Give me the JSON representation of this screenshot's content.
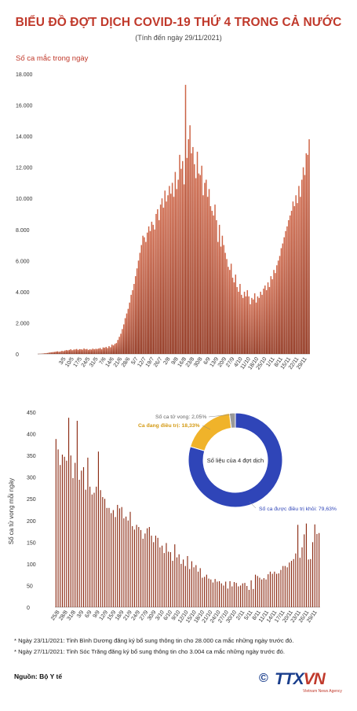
{
  "header": {
    "title": "BIỂU ĐỒ ĐỢT DỊCH COVID-19 THỨ 4 TRONG CẢ NƯỚC",
    "subtitle": "(Tính đến ngày 29/11/2021)"
  },
  "chart_data": [
    {
      "type": "bar",
      "ylabel": "Số ca mắc trong ngày",
      "ylim": [
        0,
        18000
      ],
      "yticks": [
        "0",
        "2.000",
        "4.000",
        "6.000",
        "8.000",
        "10.000",
        "12.000",
        "14.000",
        "16.000",
        "18.000"
      ],
      "tick_labels": [
        "3/5",
        "10/5",
        "17/5",
        "24/5",
        "31/5",
        "7/6",
        "14/6",
        "21/6",
        "28/6",
        "5/7",
        "12/7",
        "19/7",
        "26/7",
        "2/8",
        "9/8",
        "16/8",
        "23/8",
        "30/8",
        "6/9",
        "13/9",
        "20/9",
        "27/9",
        "4/10",
        "11/10",
        "18/10",
        "25/10",
        "1/11",
        "8/11",
        "15/11",
        "22/11",
        "29/11"
      ],
      "values": [
        6,
        12,
        18,
        25,
        40,
        45,
        60,
        80,
        100,
        110,
        120,
        130,
        150,
        170,
        140,
        160,
        200,
        180,
        220,
        250,
        230,
        260,
        300,
        240,
        280,
        290,
        320,
        260,
        310,
        300,
        280,
        350,
        300,
        320,
        260,
        300,
        280,
        340,
        300,
        330,
        320,
        350,
        380,
        300,
        420,
        400,
        450,
        380,
        500,
        430,
        600,
        550,
        650,
        700,
        900,
        1100,
        1300,
        1600,
        1900,
        2300,
        2600,
        2900,
        3300,
        3800,
        4100,
        4500,
        5000,
        5500,
        6000,
        6500,
        7000,
        7600,
        7500,
        7200,
        7800,
        8200,
        7900,
        8500,
        8300,
        8000,
        9000,
        9300,
        8600,
        9600,
        10000,
        9400,
        10500,
        9800,
        10200,
        10800,
        10300,
        11000,
        10100,
        11700,
        10600,
        11200,
        12800,
        11900,
        12400,
        10900,
        17300,
        12600,
        13800,
        14700,
        12900,
        13300,
        12200,
        11300,
        13000,
        11600,
        11500,
        12100,
        10200,
        11000,
        11200,
        10100,
        10600,
        9500,
        9200,
        8900,
        9600,
        8600,
        7200,
        8300,
        6900,
        7600,
        7000,
        6500,
        6100,
        5600,
        5400,
        5800,
        4900,
        4600,
        5100,
        4300,
        4000,
        4500,
        3800,
        3600,
        4000,
        3700,
        4100,
        3700,
        3200,
        3600,
        3500,
        3900,
        3300,
        3700,
        3600,
        4000,
        3800,
        4200,
        4400,
        4100,
        4600,
        4300,
        5000,
        4800,
        5400,
        5200,
        5700,
        6000,
        6300,
        6800,
        7100,
        7500,
        7900,
        8200,
        8600,
        8900,
        9200,
        9800,
        9500,
        10200,
        9700,
        10800,
        10100,
        11200,
        12000,
        11500,
        12900,
        12800,
        13800
      ]
    },
    {
      "type": "bar",
      "ylabel": "Số ca tử vong mỗi ngày",
      "ylim": [
        0,
        450
      ],
      "yticks": [
        "0",
        "50",
        "100",
        "150",
        "200",
        "250",
        "300",
        "350",
        "400",
        "450"
      ],
      "tick_labels": [
        "25/8",
        "28/8",
        "31/8",
        "3/9",
        "6/9",
        "9/9",
        "12/9",
        "15/9",
        "18/9",
        "21/9",
        "24/9",
        "27/9",
        "30/9",
        "3/10",
        "6/10",
        "9/10",
        "12/10",
        "15/10",
        "18/10",
        "21/10",
        "24/10",
        "27/10",
        "30/10",
        "2/11",
        "5/11",
        "8/11",
        "11/11",
        "14/11",
        "17/11",
        "20/11",
        "23/11",
        "26/11",
        "29/11"
      ],
      "values": [
        388,
        364,
        328,
        352,
        347,
        338,
        437,
        350,
        298,
        333,
        430,
        294,
        315,
        323,
        271,
        345,
        278,
        260,
        264,
        278,
        359,
        270,
        254,
        250,
        229,
        229,
        217,
        224,
        208,
        236,
        228,
        231,
        205,
        209,
        200,
        220,
        187,
        179,
        190,
        185,
        178,
        158,
        170,
        182,
        185,
        165,
        150,
        165,
        160,
        138,
        142,
        125,
        148,
        128,
        127,
        107,
        145,
        115,
        122,
        100,
        110,
        95,
        118,
        88,
        106,
        92,
        97,
        82,
        90,
        68,
        70,
        75,
        66,
        64,
        57,
        65,
        59,
        60,
        55,
        50,
        59,
        43,
        60,
        48,
        58,
        56,
        48,
        50,
        55,
        56,
        49,
        40,
        62,
        42,
        75,
        72,
        68,
        64,
        67,
        64,
        76,
        82,
        77,
        82,
        77,
        78,
        86,
        95,
        95,
        92,
        103,
        107,
        111,
        124,
        190,
        114,
        138,
        168,
        193,
        110,
        111,
        150,
        191,
        169,
        171
      ]
    }
  ],
  "donut": {
    "center_label": "Số liệu của 4 đợt dịch",
    "segments": [
      {
        "label": "Số ca tử vong: 2,05%",
        "value": 2.05,
        "color": "#9a9a9a"
      },
      {
        "label": "Ca đang điều trị: 18,33%",
        "value": 18.33,
        "color": "#f0b32a"
      },
      {
        "label": "Số ca được điều trị khỏi: 79,63%",
        "value": 79.63,
        "color": "#2f45b8"
      }
    ]
  },
  "notes": [
    "* Ngày 23/11/2021: Tỉnh Bình Dương đăng ký bổ sung thông tin cho 28.000 ca mắc những ngày trước đó.",
    "* Ngày 27/11/2021: Tỉnh Sóc Trăng đăng ký bổ sung thông tin cho 3.004 ca mắc những ngày trước đó."
  ],
  "source": "Nguồn: Bộ Y tế",
  "logo": {
    "symbol": "©",
    "text_a": "TTX",
    "text_b": "VN",
    "tagline": "Vietnam News Agency"
  },
  "colors": {
    "bar_top": "#d0684a",
    "bar_bottom": "#8b2a12",
    "title": "#c0392b"
  }
}
